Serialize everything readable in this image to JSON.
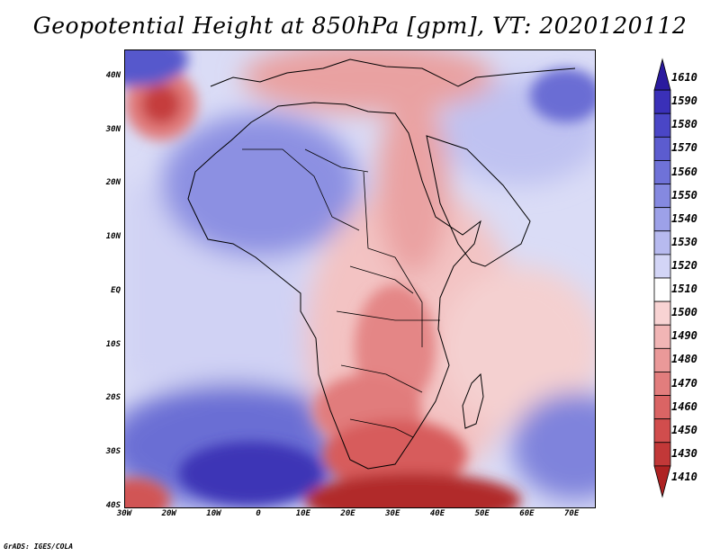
{
  "title": "Geopotential Height at 850hPa [gpm], VT: 2020120112",
  "credit": "GrADS: IGES/COLA",
  "map": {
    "lon_range": [
      -30,
      75
    ],
    "lat_range": [
      -40,
      45
    ],
    "lat_ticks": [
      {
        "value": 40,
        "label": "40N"
      },
      {
        "value": 30,
        "label": "30N"
      },
      {
        "value": 20,
        "label": "20N"
      },
      {
        "value": 10,
        "label": "10N"
      },
      {
        "value": 0,
        "label": "EQ"
      },
      {
        "value": -10,
        "label": "10S"
      },
      {
        "value": -20,
        "label": "20S"
      },
      {
        "value": -30,
        "label": "30S"
      },
      {
        "value": -40,
        "label": "40S"
      }
    ],
    "lon_ticks": [
      {
        "value": -30,
        "label": "30W"
      },
      {
        "value": -20,
        "label": "20W"
      },
      {
        "value": -10,
        "label": "10W"
      },
      {
        "value": 0,
        "label": "0"
      },
      {
        "value": 10,
        "label": "10E"
      },
      {
        "value": 20,
        "label": "20E"
      },
      {
        "value": 30,
        "label": "30E"
      },
      {
        "value": 40,
        "label": "40E"
      },
      {
        "value": 50,
        "label": "50E"
      },
      {
        "value": 60,
        "label": "60E"
      },
      {
        "value": 70,
        "label": "70E"
      }
    ]
  },
  "colorbar": {
    "levels": [
      {
        "label": "1610",
        "color": "#2a1a9e"
      },
      {
        "label": "1590",
        "color": "#3a30b8"
      },
      {
        "label": "1580",
        "color": "#4a46c6"
      },
      {
        "label": "1570",
        "color": "#5c5ccf"
      },
      {
        "label": "1560",
        "color": "#6f72d8"
      },
      {
        "label": "1550",
        "color": "#8589e0"
      },
      {
        "label": "1540",
        "color": "#9da1e8"
      },
      {
        "label": "1530",
        "color": "#b7baef"
      },
      {
        "label": "1520",
        "color": "#d3d5f6"
      },
      {
        "label": "1510",
        "color": "#ffffff"
      },
      {
        "label": "1500",
        "color": "#f8d3d3"
      },
      {
        "label": "1490",
        "color": "#f1b5b5"
      },
      {
        "label": "1480",
        "color": "#ea9999"
      },
      {
        "label": "1470",
        "color": "#e27d7d"
      },
      {
        "label": "1460",
        "color": "#da6464"
      },
      {
        "label": "1450",
        "color": "#d14d4d"
      },
      {
        "label": "1430",
        "color": "#c23838"
      },
      {
        "label": "1410",
        "color": "#ae2222"
      }
    ]
  }
}
